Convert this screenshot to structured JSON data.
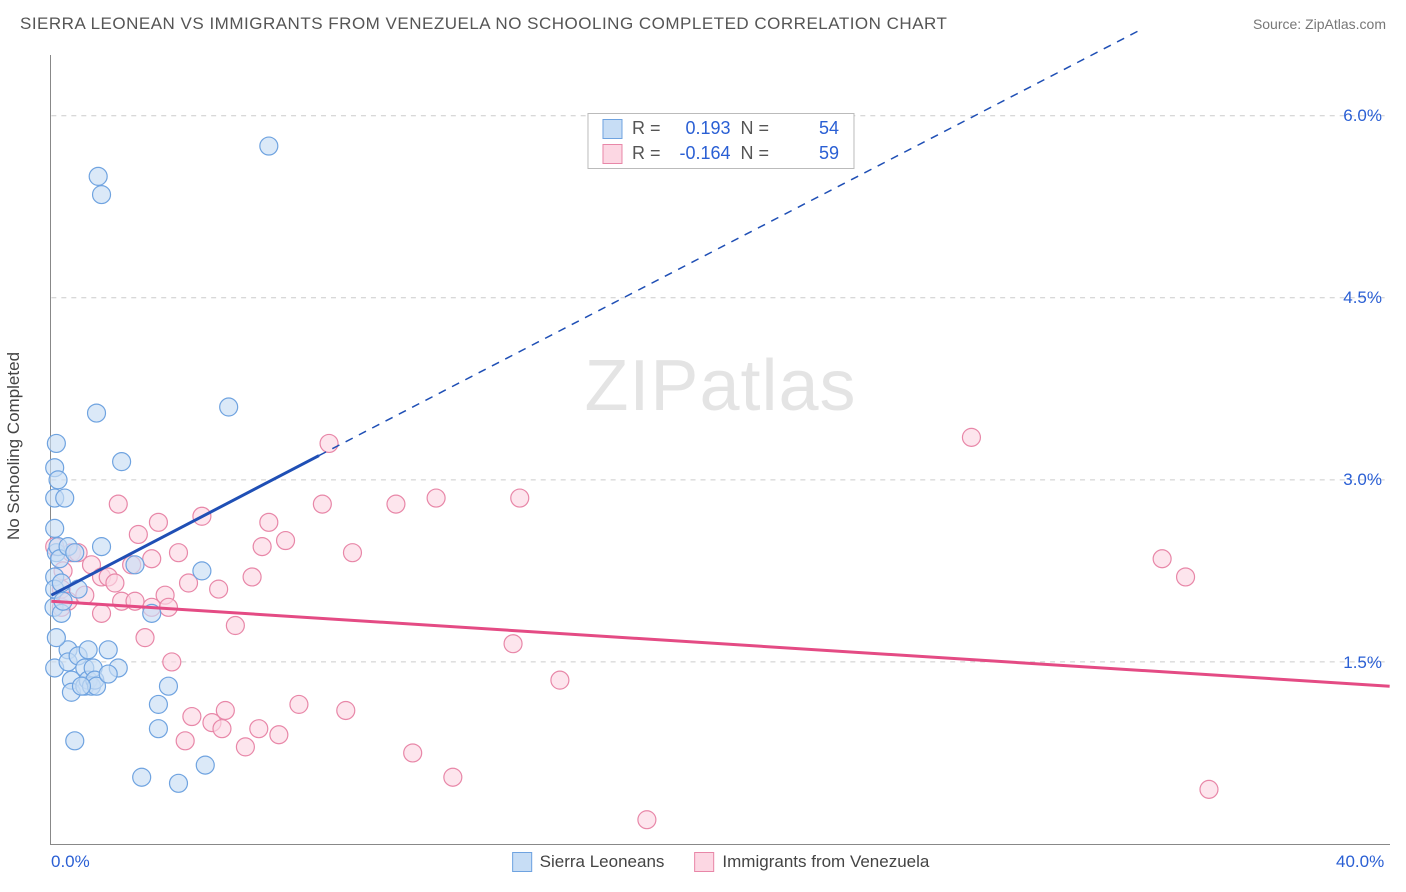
{
  "header": {
    "title": "SIERRA LEONEAN VS IMMIGRANTS FROM VENEZUELA NO SCHOOLING COMPLETED CORRELATION CHART",
    "source": "Source: ZipAtlas.com"
  },
  "axes": {
    "ylabel": "No Schooling Completed",
    "xlim": [
      0,
      40
    ],
    "ylim": [
      0,
      6.5
    ],
    "xticks": [
      {
        "v": 0,
        "label": "0.0%"
      },
      {
        "v": 40,
        "label": "40.0%"
      }
    ],
    "yticks": [
      {
        "v": 1.5,
        "label": "1.5%"
      },
      {
        "v": 3.0,
        "label": "3.0%"
      },
      {
        "v": 4.5,
        "label": "4.5%"
      },
      {
        "v": 6.0,
        "label": "6.0%"
      }
    ],
    "grid_color": "#cccccc",
    "axis_color": "#888888",
    "tick_label_color": "#2a5fd4",
    "background": "#ffffff"
  },
  "watermark": {
    "text_bold": "ZIP",
    "text_thin": "atlas"
  },
  "series": {
    "a": {
      "name": "Sierra Leoneans",
      "marker_fill": "#c7ddf5",
      "marker_stroke": "#6fa3e0",
      "marker_r": 9,
      "fill_opacity": 0.65,
      "line_color": "#1f4fb5",
      "line_width": 3,
      "r_value": "0.193",
      "n_value": "54",
      "solid_line": {
        "x1": 0,
        "y1": 2.05,
        "x2": 8,
        "y2": 3.2
      },
      "dashed_line": {
        "x1": 8,
        "y1": 3.2,
        "x2": 32.5,
        "y2": 6.7
      },
      "points": [
        [
          0.1,
          2.85
        ],
        [
          0.1,
          2.6
        ],
        [
          0.15,
          2.4
        ],
        [
          0.1,
          2.2
        ],
        [
          0.1,
          2.1
        ],
        [
          0.15,
          3.3
        ],
        [
          0.1,
          3.1
        ],
        [
          0.2,
          3.0
        ],
        [
          0.08,
          1.95
        ],
        [
          0.1,
          1.45
        ],
        [
          0.2,
          2.45
        ],
        [
          0.25,
          2.35
        ],
        [
          0.3,
          2.15
        ],
        [
          0.3,
          1.9
        ],
        [
          0.35,
          2.0
        ],
        [
          0.5,
          2.45
        ],
        [
          0.5,
          1.6
        ],
        [
          0.5,
          1.5
        ],
        [
          0.6,
          1.35
        ],
        [
          0.6,
          1.25
        ],
        [
          0.7,
          0.85
        ],
        [
          0.8,
          2.1
        ],
        [
          0.8,
          1.55
        ],
        [
          1.0,
          1.3
        ],
        [
          1.0,
          1.45
        ],
        [
          1.1,
          1.6
        ],
        [
          1.1,
          1.35
        ],
        [
          1.2,
          1.3
        ],
        [
          1.25,
          1.45
        ],
        [
          1.3,
          1.35
        ],
        [
          1.35,
          1.3
        ],
        [
          1.35,
          3.55
        ],
        [
          1.4,
          5.5
        ],
        [
          1.5,
          5.35
        ],
        [
          1.5,
          2.45
        ],
        [
          1.7,
          1.6
        ],
        [
          2.1,
          3.15
        ],
        [
          2.5,
          2.3
        ],
        [
          2.7,
          0.55
        ],
        [
          3.2,
          1.15
        ],
        [
          3.2,
          0.95
        ],
        [
          3.5,
          1.3
        ],
        [
          3.8,
          0.5
        ],
        [
          4.5,
          2.25
        ],
        [
          4.6,
          0.65
        ],
        [
          5.3,
          3.6
        ],
        [
          6.5,
          5.75
        ],
        [
          3.0,
          1.9
        ],
        [
          2.0,
          1.45
        ],
        [
          0.4,
          2.85
        ],
        [
          0.7,
          2.4
        ],
        [
          1.7,
          1.4
        ],
        [
          0.9,
          1.3
        ],
        [
          0.15,
          1.7
        ]
      ]
    },
    "b": {
      "name": "Immigrants from Venezuela",
      "marker_fill": "#fcd7e3",
      "marker_stroke": "#e887a8",
      "marker_r": 9,
      "fill_opacity": 0.65,
      "line_color": "#e44b84",
      "line_width": 3,
      "r_value": "-0.164",
      "n_value": "59",
      "solid_line": {
        "x1": 0,
        "y1": 2.0,
        "x2": 40,
        "y2": 1.3
      },
      "points": [
        [
          0.1,
          2.45
        ],
        [
          0.3,
          2.1
        ],
        [
          0.3,
          1.95
        ],
        [
          0.35,
          2.25
        ],
        [
          0.5,
          2.0
        ],
        [
          0.6,
          2.4
        ],
        [
          0.8,
          2.4
        ],
        [
          1.0,
          2.05
        ],
        [
          1.2,
          2.3
        ],
        [
          1.5,
          2.2
        ],
        [
          1.7,
          2.2
        ],
        [
          1.9,
          2.15
        ],
        [
          2.1,
          2.0
        ],
        [
          2.4,
          2.3
        ],
        [
          2.6,
          2.55
        ],
        [
          3.0,
          1.95
        ],
        [
          3.2,
          2.65
        ],
        [
          3.4,
          2.05
        ],
        [
          3.5,
          1.95
        ],
        [
          4.1,
          2.15
        ],
        [
          4.2,
          1.05
        ],
        [
          4.8,
          1.0
        ],
        [
          5.1,
          0.95
        ],
        [
          5.2,
          1.1
        ],
        [
          5.8,
          0.8
        ],
        [
          6.2,
          0.95
        ],
        [
          6.3,
          2.45
        ],
        [
          6.5,
          2.65
        ],
        [
          6.8,
          0.9
        ],
        [
          7.4,
          1.15
        ],
        [
          8.1,
          2.8
        ],
        [
          8.3,
          3.3
        ],
        [
          8.8,
          1.1
        ],
        [
          10.3,
          2.8
        ],
        [
          10.8,
          0.75
        ],
        [
          11.5,
          2.85
        ],
        [
          12.0,
          0.55
        ],
        [
          13.8,
          1.65
        ],
        [
          14.0,
          2.85
        ],
        [
          15.2,
          1.35
        ],
        [
          17.8,
          0.2
        ],
        [
          27.5,
          3.35
        ],
        [
          33.2,
          2.35
        ],
        [
          33.9,
          2.2
        ],
        [
          34.6,
          0.45
        ],
        [
          2.0,
          2.8
        ],
        [
          2.5,
          2.0
        ],
        [
          3.8,
          2.4
        ],
        [
          4.5,
          2.7
        ],
        [
          5.0,
          2.1
        ],
        [
          1.5,
          1.9
        ],
        [
          6.0,
          2.2
        ],
        [
          7.0,
          2.5
        ],
        [
          3.0,
          2.35
        ],
        [
          9.0,
          2.4
        ],
        [
          4.0,
          0.85
        ],
        [
          5.5,
          1.8
        ],
        [
          2.8,
          1.7
        ],
        [
          3.6,
          1.5
        ]
      ]
    }
  },
  "stats_box": {
    "r_label": "R  =",
    "n_label": "N  ="
  },
  "legend": {
    "a": "Sierra Leoneans",
    "b": "Immigrants from Venezuela"
  }
}
